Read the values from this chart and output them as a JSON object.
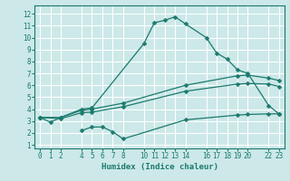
{
  "xlabel": "Humidex (Indice chaleur)",
  "bg_color": "#cce8e8",
  "grid_color": "#ffffff",
  "line_color": "#1a7a6e",
  "xlim": [
    -0.5,
    23.5
  ],
  "ylim": [
    0.7,
    12.7
  ],
  "xticks": [
    0,
    1,
    2,
    4,
    5,
    6,
    7,
    8,
    10,
    11,
    12,
    13,
    14,
    16,
    17,
    18,
    19,
    20,
    22,
    23
  ],
  "yticks": [
    1,
    2,
    3,
    4,
    5,
    6,
    7,
    8,
    9,
    10,
    11,
    12
  ],
  "line1_x": [
    0,
    1,
    2,
    4,
    5,
    10,
    11,
    12,
    13,
    14,
    16,
    17,
    18,
    19,
    20,
    22,
    23
  ],
  "line1_y": [
    3.3,
    2.9,
    3.3,
    4.0,
    4.1,
    9.5,
    11.25,
    11.45,
    11.75,
    11.15,
    10.0,
    8.7,
    8.2,
    7.3,
    7.0,
    4.3,
    3.6
  ],
  "line2_x": [
    0,
    2,
    4,
    5,
    8,
    14,
    19,
    20,
    22,
    23
  ],
  "line2_y": [
    3.3,
    3.3,
    3.9,
    4.0,
    4.5,
    6.0,
    6.8,
    6.85,
    6.6,
    6.4
  ],
  "line3_x": [
    0,
    2,
    4,
    5,
    8,
    14,
    19,
    20,
    22,
    23
  ],
  "line3_y": [
    3.3,
    3.2,
    3.7,
    3.75,
    4.2,
    5.5,
    6.1,
    6.15,
    6.1,
    5.9
  ],
  "line4_x": [
    4,
    5,
    6,
    7,
    8,
    14,
    19,
    20,
    22,
    23
  ],
  "line4_y": [
    2.2,
    2.5,
    2.5,
    2.1,
    1.5,
    3.1,
    3.5,
    3.55,
    3.6,
    3.6
  ]
}
